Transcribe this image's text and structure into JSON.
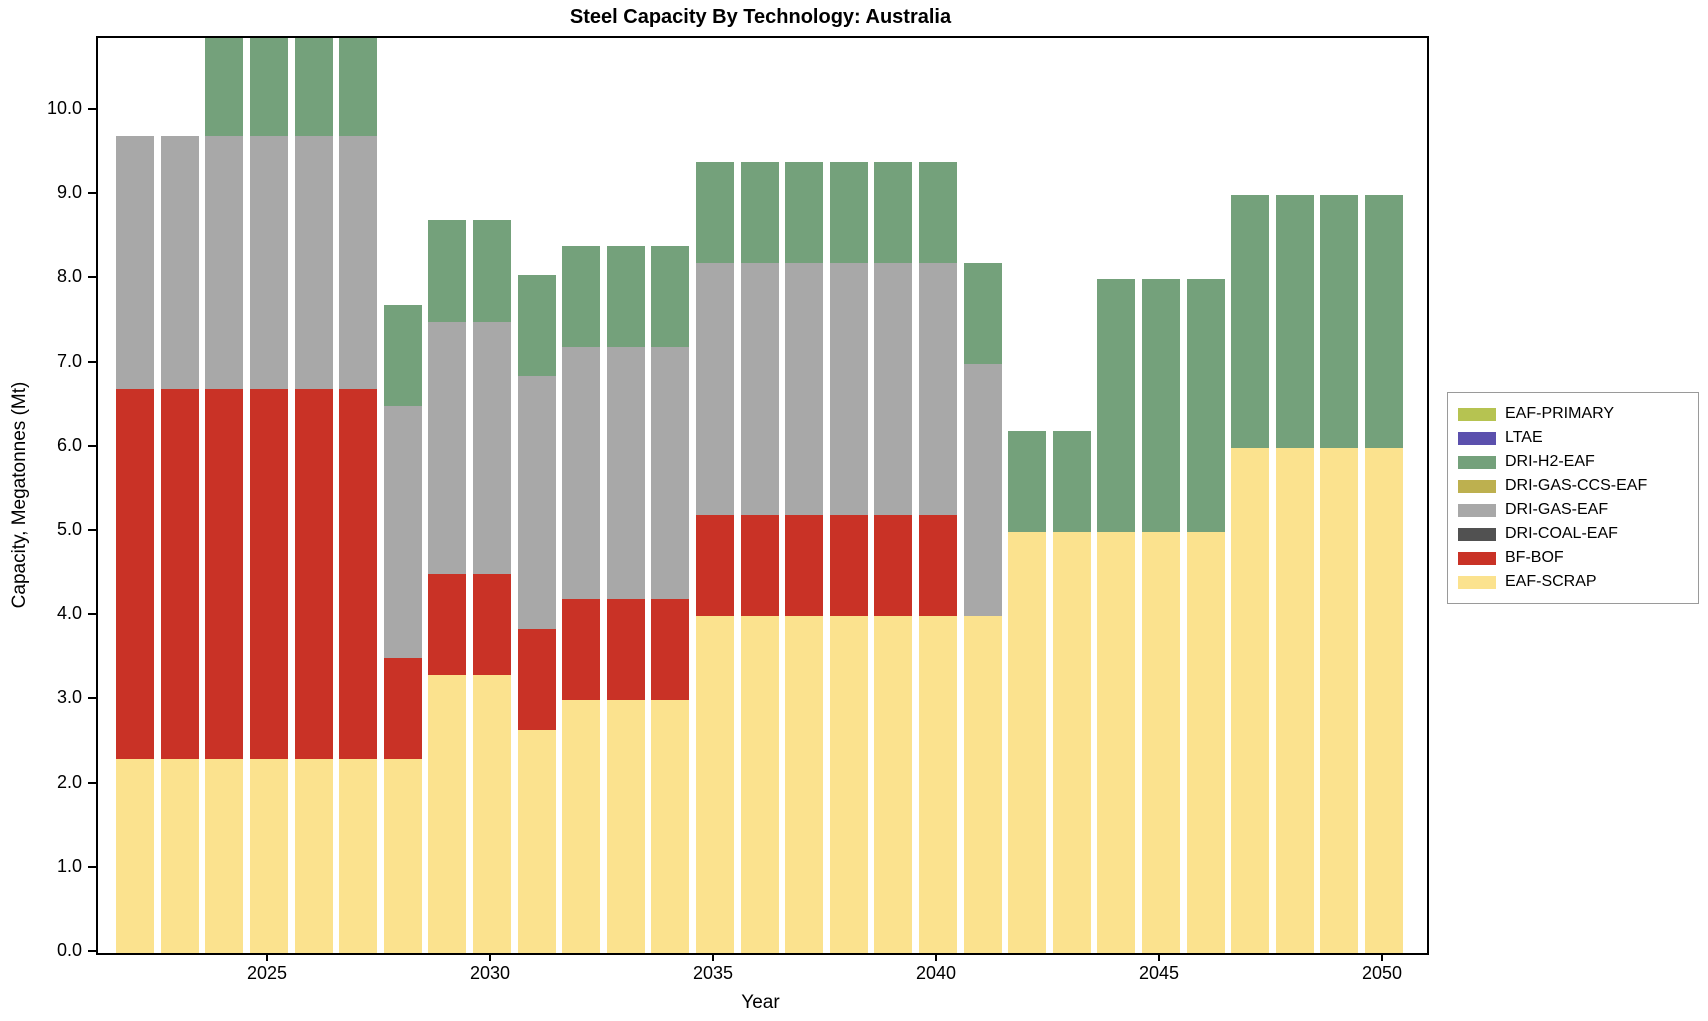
{
  "chart_data": {
    "type": "bar",
    "stacked": true,
    "title": "Steel Capacity By Technology: Australia",
    "xlabel": "Year",
    "ylabel": "Capacity, Megatonnes (Mt)",
    "ylim": [
      0,
      10.87
    ],
    "grid": false,
    "legend_position": "right-outside",
    "yticks": [
      0,
      1,
      2,
      3,
      4,
      5,
      6,
      7,
      8,
      9,
      10
    ],
    "ytick_labels": [
      "0.0",
      "1.0",
      "2.0",
      "3.0",
      "4.0",
      "5.0",
      "6.0",
      "7.0",
      "8.0",
      "9.0",
      "10.0"
    ],
    "xticks": [
      2025,
      2030,
      2035,
      2040,
      2045,
      2050
    ],
    "xtick_labels": [
      "2025",
      "2030",
      "2035",
      "2040",
      "2045",
      "2050"
    ],
    "years": [
      2022,
      2023,
      2024,
      2025,
      2026,
      2027,
      2028,
      2029,
      2030,
      2031,
      2032,
      2033,
      2034,
      2035,
      2036,
      2037,
      2038,
      2039,
      2040,
      2041,
      2042,
      2043,
      2044,
      2045,
      2046,
      2047,
      2048,
      2049,
      2050
    ],
    "series": [
      {
        "name": "EAF-SCRAP",
        "color": "#fbe28e",
        "values": [
          2.3,
          2.3,
          2.3,
          2.3,
          2.3,
          2.3,
          2.3,
          3.3,
          3.3,
          2.65,
          3.0,
          3.0,
          3.0,
          4.0,
          4.0,
          4.0,
          4.0,
          4.0,
          4.0,
          4.0,
          5.0,
          5.0,
          5.0,
          5.0,
          5.0,
          6.0,
          6.0,
          6.0,
          6.0
        ]
      },
      {
        "name": "BF-BOF",
        "color": "#c93226",
        "values": [
          4.4,
          4.4,
          4.4,
          4.4,
          4.4,
          4.4,
          1.2,
          1.2,
          1.2,
          1.2,
          1.2,
          1.2,
          1.2,
          1.2,
          1.2,
          1.2,
          1.2,
          1.2,
          1.2,
          0,
          0,
          0,
          0,
          0,
          0,
          0,
          0,
          0,
          0
        ]
      },
      {
        "name": "DRI-COAL-EAF",
        "color": "#515151",
        "values": [
          0,
          0,
          0,
          0,
          0,
          0,
          0,
          0,
          0,
          0,
          0,
          0,
          0,
          0,
          0,
          0,
          0,
          0,
          0,
          0,
          0,
          0,
          0,
          0,
          0,
          0,
          0,
          0,
          0
        ]
      },
      {
        "name": "DRI-GAS-EAF",
        "color": "#a8a8a8",
        "values": [
          3.0,
          3.0,
          3.0,
          3.0,
          3.0,
          3.0,
          3.0,
          3.0,
          3.0,
          3.0,
          3.0,
          3.0,
          3.0,
          3.0,
          3.0,
          3.0,
          3.0,
          3.0,
          3.0,
          3.0,
          0,
          0,
          0,
          0,
          0,
          0,
          0,
          0,
          0
        ]
      },
      {
        "name": "DRI-GAS-CCS-EAF",
        "color": "#bdb04f",
        "values": [
          0,
          0,
          0,
          0,
          0,
          0,
          0,
          0,
          0,
          0,
          0,
          0,
          0,
          0,
          0,
          0,
          0,
          0,
          0,
          0,
          0,
          0,
          0,
          0,
          0,
          0,
          0,
          0,
          0
        ]
      },
      {
        "name": "DRI-H2-EAF",
        "color": "#74a17b",
        "values": [
          0,
          0,
          1.2,
          1.2,
          1.2,
          1.2,
          1.2,
          1.2,
          1.2,
          1.2,
          1.2,
          1.2,
          1.2,
          1.2,
          1.2,
          1.2,
          1.2,
          1.2,
          1.2,
          1.2,
          1.2,
          1.2,
          3.0,
          3.0,
          3.0,
          3.0,
          3.0,
          3.0,
          3.0
        ]
      },
      {
        "name": "LTAE",
        "color": "#5b50ad",
        "values": [
          0,
          0,
          0,
          0,
          0,
          0,
          0,
          0,
          0,
          0,
          0,
          0,
          0,
          0,
          0,
          0,
          0,
          0,
          0,
          0,
          0,
          0,
          0,
          0,
          0,
          0,
          0,
          0,
          0
        ]
      },
      {
        "name": "EAF-PRIMARY",
        "color": "#b6c351",
        "values": [
          0,
          0,
          0,
          0,
          0,
          0,
          0,
          0,
          0,
          0,
          0,
          0,
          0,
          0,
          0,
          0,
          0,
          0,
          0,
          0,
          0,
          0,
          0,
          0,
          0,
          0,
          0,
          0,
          0
        ]
      }
    ],
    "legend_order": [
      "EAF-PRIMARY",
      "LTAE",
      "DRI-H2-EAF",
      "DRI-GAS-CCS-EAF",
      "DRI-GAS-EAF",
      "DRI-COAL-EAF",
      "BF-BOF",
      "EAF-SCRAP"
    ]
  }
}
